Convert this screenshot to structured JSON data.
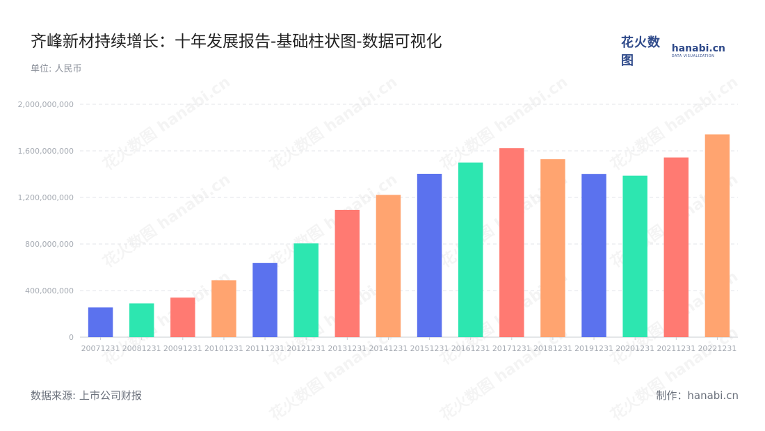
{
  "header": {
    "title": "齐峰新材持续增长：十年发展报告-基础柱状图-数据可视化",
    "unit": "单位: 人民币"
  },
  "logo": {
    "cn": "花火数图",
    "brand": "hanabi.cn",
    "sub": "DATA VISUALIZATION"
  },
  "footer": {
    "source": "数据来源: 上市公司财报",
    "credit": "制作：hanabi.cn"
  },
  "watermark": "花火数图 hanabi.cn",
  "colors": {
    "palette": [
      "#5b72ee",
      "#2de6b0",
      "#ff7a72",
      "#ffa470"
    ],
    "grid": "#e3e5e9",
    "axis_text": "#a6abb3",
    "axis_line": "#c9ccd1"
  },
  "chart_data": {
    "type": "bar",
    "categories": [
      "20071231",
      "20081231",
      "20091231",
      "20101231",
      "20111231",
      "20121231",
      "20131231",
      "20141231",
      "20151231",
      "20161231",
      "20171231",
      "20181231",
      "20191231",
      "20201231",
      "20211231",
      "20221231"
    ],
    "values": [
      255000000,
      290000000,
      340000000,
      488000000,
      638000000,
      805000000,
      1093000000,
      1222000000,
      1403000000,
      1500000000,
      1623000000,
      1528000000,
      1402000000,
      1387000000,
      1543000000,
      1741000000
    ],
    "y_ticks": [
      "0",
      "400,000,000",
      "800,000,000",
      "1,200,000,000",
      "1,600,000,000",
      "2,000,000,000"
    ],
    "ylim": [
      0,
      2000000000
    ],
    "grid": true,
    "legend": "none"
  }
}
